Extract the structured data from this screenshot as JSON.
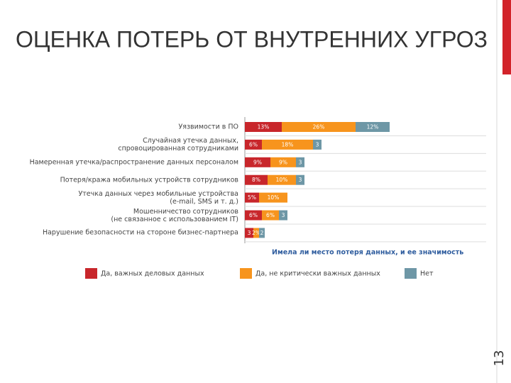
{
  "title": "ОЦЕНКА ПОТЕРЬ ОТ ВНУТРЕННИХ УГРОЗ",
  "slide_number": "13",
  "chart_data": {
    "type": "bar",
    "orientation": "horizontal",
    "stacked": true,
    "x_label": "Имела ли место потеря данных, и ее значимость",
    "categories": [
      "Уязвимости в ПО",
      "Случайная утечка данных,\nспровоцированная сотрудниками",
      "Намеренная утечка/распространение данных персоналом",
      "Потеря/кража мобильных устройств сотрудников",
      "Утечка данных через мобильные устройства\n(e-mail, SMS и т. д.)",
      "Мошенничество сотрудников\n(не связанное с использованием IT)",
      "Нарушение безопасности на стороне бизнес-партнера"
    ],
    "series": [
      {
        "name": "Да, важных деловых данных",
        "color": "#c8262b",
        "values": [
          13,
          6,
          9,
          8,
          5,
          6,
          3
        ],
        "value_labels": [
          "13%",
          "6%",
          "9%",
          "8%",
          "5%",
          "6%",
          "3"
        ]
      },
      {
        "name": "Да, не критически важных данных",
        "color": "#f7941d",
        "values": [
          26,
          18,
          9,
          10,
          10,
          6,
          2
        ],
        "value_labels": [
          "26%",
          "18%",
          "9%",
          "10%",
          "10%",
          "6%",
          "2%"
        ]
      },
      {
        "name": "Нет",
        "color": "#6e97a6",
        "values": [
          12,
          3,
          3,
          3,
          null,
          3,
          2
        ],
        "value_labels": [
          "12%",
          "3",
          "3",
          "3",
          null,
          "3",
          "2"
        ]
      }
    ]
  }
}
